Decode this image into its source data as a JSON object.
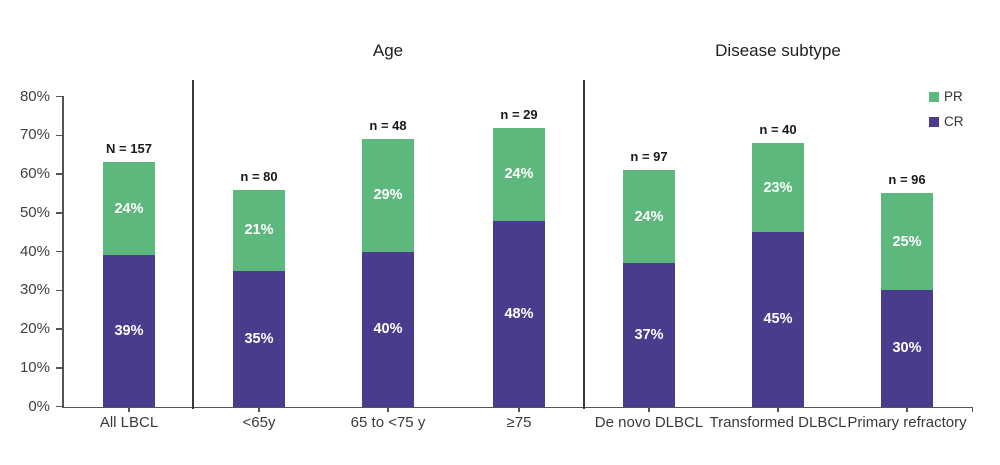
{
  "titles": {
    "age_group": "Age",
    "disease_group": "Disease subtype"
  },
  "legend": {
    "items": [
      {
        "label": "PR",
        "color": "#5CB87D"
      },
      {
        "label": "CR",
        "color": "#4B3B8C"
      }
    ]
  },
  "colors": {
    "pr": "#5CB87D",
    "cr": "#4B3B8C",
    "axis": "#555555",
    "separator": "#383838",
    "bar_value_text": "#ffffff",
    "n_label_text": "#1a1a1a"
  },
  "chart_data": {
    "type": "bar",
    "stacked": true,
    "categories": [
      "All LBCL",
      "<65y",
      "65 to <75 y",
      "≥75",
      "De novo DLBCL",
      "Transformed DLBCL",
      "Primary refractory"
    ],
    "series": [
      {
        "name": "CR",
        "color": "#4B3B8C",
        "values": [
          39,
          35,
          40,
          48,
          37,
          45,
          30
        ]
      },
      {
        "name": "PR",
        "color": "#5CB87D",
        "values": [
          24,
          21,
          29,
          24,
          24,
          23,
          25
        ]
      }
    ],
    "totals": [
      63,
      56,
      69,
      72,
      61,
      68,
      55
    ],
    "n_labels": [
      "N = 157",
      "n = 80",
      "n = 48",
      "n = 29",
      "n = 97",
      "n = 40",
      "n = 96"
    ],
    "group_titles": [
      {
        "label": "Age",
        "categories": [
          "<65y",
          "65 to <75 y",
          "≥75"
        ]
      },
      {
        "label": "Disease subtype",
        "categories": [
          "De novo DLBCL",
          "Transformed DLBCL",
          "Primary refractory"
        ]
      }
    ],
    "ylabel": "",
    "xlabel": "",
    "ylim": [
      0,
      80
    ],
    "ytick_step": 10,
    "ytick_suffix": "%",
    "grid": false,
    "legend_position": "top-right",
    "segment_label_suffix": "%"
  }
}
